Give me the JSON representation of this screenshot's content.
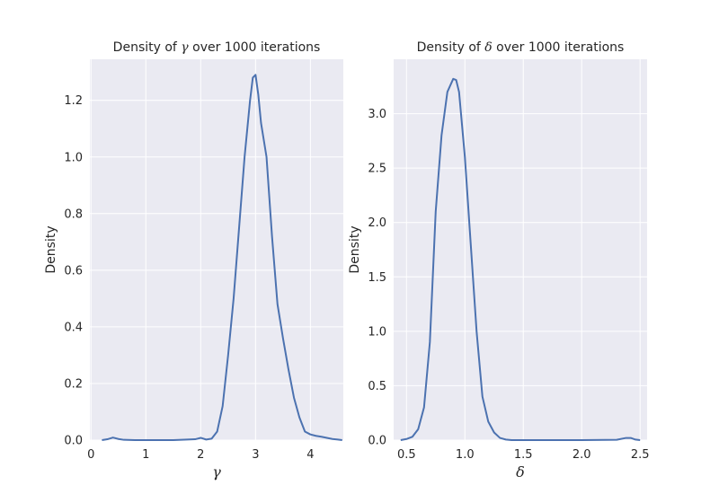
{
  "chart_data": [
    {
      "type": "line",
      "title_prefix": "Density of ",
      "title_symbol": "γ",
      "title_suffix": " over 1000 iterations",
      "xlabel": "γ",
      "ylabel": "Density",
      "xlim": [
        -0.02,
        4.6
      ],
      "ylim": [
        0,
        1.345
      ],
      "xticks": [
        "0",
        "1",
        "2",
        "3",
        "4"
      ],
      "yticks": [
        "0.0",
        "0.2",
        "0.4",
        "0.6",
        "0.8",
        "1.0",
        "1.2"
      ],
      "color": "#4c72b0",
      "grid": true,
      "series": [
        {
          "x": [
            0.2,
            0.3,
            0.4,
            0.5,
            0.6,
            0.8,
            1.0,
            1.5,
            1.9,
            2.0,
            2.1,
            2.2,
            2.3,
            2.4,
            2.5,
            2.6,
            2.7,
            2.8,
            2.9,
            2.95,
            3.0,
            3.05,
            3.1,
            3.2,
            3.3,
            3.4,
            3.5,
            3.6,
            3.7,
            3.8,
            3.9,
            4.0,
            4.1,
            4.2,
            4.3,
            4.4,
            4.5,
            4.58
          ],
          "y": [
            0.0,
            0.003,
            0.009,
            0.004,
            0.001,
            0.0,
            0.0,
            0.0,
            0.003,
            0.008,
            0.002,
            0.005,
            0.03,
            0.12,
            0.3,
            0.5,
            0.75,
            1.0,
            1.2,
            1.28,
            1.29,
            1.22,
            1.12,
            1.0,
            0.72,
            0.48,
            0.36,
            0.25,
            0.15,
            0.08,
            0.03,
            0.02,
            0.015,
            0.012,
            0.008,
            0.004,
            0.002,
            0.0
          ]
        }
      ]
    },
    {
      "type": "line",
      "title_prefix": "Density of ",
      "title_symbol": "δ",
      "title_suffix": " over 1000 iterations",
      "xlabel": "δ",
      "ylabel": "Density",
      "xlim": [
        0.39,
        2.56
      ],
      "ylim": [
        0,
        3.5
      ],
      "xticks": [
        "0.5",
        "1.0",
        "1.5",
        "2.0",
        "2.5"
      ],
      "yticks": [
        "0.0",
        "0.5",
        "1.0",
        "1.5",
        "2.0",
        "2.5",
        "3.0"
      ],
      "color": "#4c72b0",
      "grid": true,
      "series": [
        {
          "x": [
            0.45,
            0.5,
            0.55,
            0.6,
            0.65,
            0.7,
            0.75,
            0.8,
            0.85,
            0.9,
            0.925,
            0.95,
            1.0,
            1.05,
            1.1,
            1.15,
            1.2,
            1.25,
            1.3,
            1.35,
            1.4,
            1.5,
            1.7,
            2.0,
            2.3,
            2.38,
            2.42,
            2.46,
            2.5
          ],
          "y": [
            0.0,
            0.01,
            0.03,
            0.1,
            0.3,
            0.9,
            2.1,
            2.8,
            3.2,
            3.32,
            3.31,
            3.2,
            2.6,
            1.8,
            1.0,
            0.4,
            0.17,
            0.07,
            0.02,
            0.005,
            0.0,
            0.0,
            0.0,
            0.0,
            0.003,
            0.02,
            0.02,
            0.005,
            0.0
          ]
        }
      ]
    }
  ]
}
